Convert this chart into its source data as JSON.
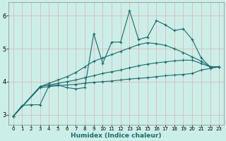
{
  "title": "",
  "xlabel": "Humidex (Indice chaleur)",
  "xlim": [
    -0.5,
    23.5
  ],
  "ylim": [
    2.7,
    6.4
  ],
  "yticks": [
    3,
    4,
    5,
    6
  ],
  "xtick_labels": [
    "0",
    "1",
    "2",
    "3",
    "4",
    "5",
    "6",
    "7",
    "8",
    "9",
    "10",
    "11",
    "12",
    "13",
    "14",
    "15",
    "16",
    "17",
    "18",
    "19",
    "20",
    "21",
    "22",
    "23"
  ],
  "background_color": "#cceee8",
  "grid_color": "#e8e8e8",
  "line_color": "#1a6b6b",
  "series": [
    {
      "x": [
        0,
        1,
        2,
        3,
        4,
        5,
        6,
        7,
        8,
        9,
        10,
        11,
        12,
        13,
        14,
        15,
        16,
        17,
        18,
        19,
        20,
        21,
        22,
        23
      ],
      "y": [
        2.95,
        3.28,
        3.3,
        3.3,
        3.88,
        3.9,
        3.82,
        3.78,
        3.82,
        5.45,
        4.55,
        5.2,
        5.2,
        6.15,
        5.28,
        5.35,
        5.85,
        5.72,
        5.55,
        5.6,
        5.28,
        4.72,
        4.45,
        4.45
      ]
    },
    {
      "x": [
        0,
        3,
        4,
        5,
        6,
        7,
        8,
        9,
        10,
        11,
        12,
        13,
        14,
        15,
        16,
        17,
        18,
        19,
        20,
        21,
        22,
        23
      ],
      "y": [
        2.95,
        3.85,
        3.9,
        3.95,
        4.0,
        4.05,
        4.12,
        4.18,
        4.25,
        4.3,
        4.35,
        4.42,
        4.48,
        4.53,
        4.57,
        4.6,
        4.63,
        4.65,
        4.65,
        4.55,
        4.45,
        4.45
      ]
    },
    {
      "x": [
        0,
        3,
        4,
        5,
        6,
        7,
        8,
        9,
        10,
        11,
        12,
        13,
        14,
        15,
        16,
        17,
        18,
        19,
        20,
        21,
        22,
        23
      ],
      "y": [
        2.95,
        3.85,
        3.95,
        4.05,
        4.15,
        4.28,
        4.45,
        4.62,
        4.72,
        4.82,
        4.92,
        5.02,
        5.12,
        5.18,
        5.15,
        5.1,
        5.0,
        4.88,
        4.75,
        4.62,
        4.45,
        4.45
      ]
    },
    {
      "x": [
        0,
        3,
        4,
        5,
        6,
        7,
        8,
        9,
        10,
        11,
        12,
        13,
        14,
        15,
        16,
        17,
        18,
        19,
        20,
        21,
        22,
        23
      ],
      "y": [
        2.95,
        3.82,
        3.85,
        3.88,
        3.9,
        3.92,
        3.95,
        3.98,
        4.0,
        4.02,
        4.05,
        4.08,
        4.1,
        4.12,
        4.15,
        4.18,
        4.2,
        4.22,
        4.25,
        4.35,
        4.4,
        4.45
      ]
    }
  ]
}
